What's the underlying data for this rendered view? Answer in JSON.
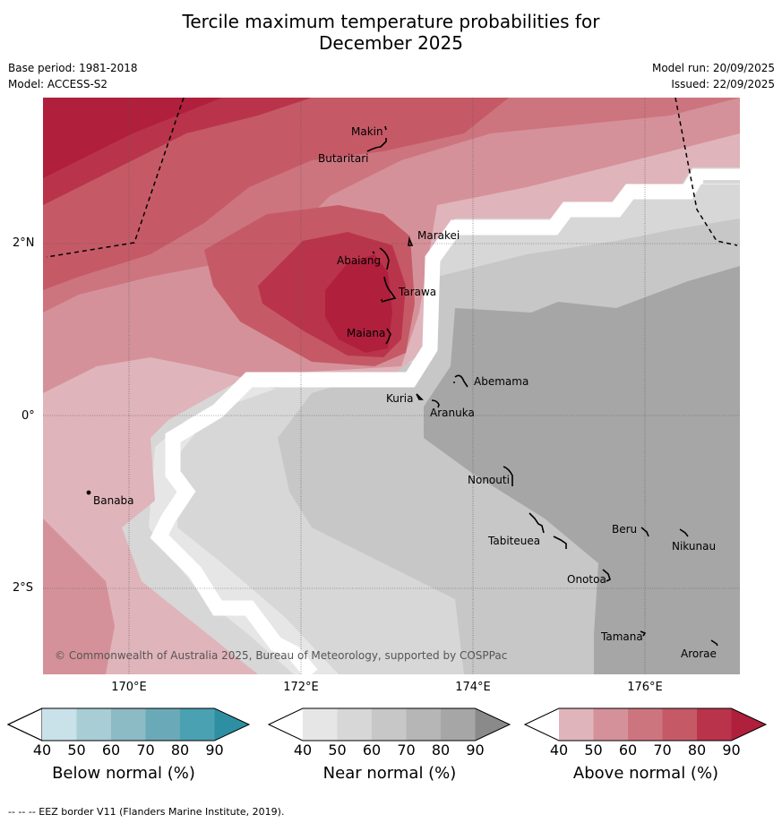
{
  "title": {
    "line1": "Tercile maximum temperature probabilities for",
    "line2": "December 2025"
  },
  "meta": {
    "base_period": "Base period: 1981-2018",
    "model": "Model: ACCESS-S2",
    "model_run": "Model run: 20/09/2025",
    "issued": "Issued: 22/09/2025"
  },
  "axes": {
    "lat_labels": [
      "2°N",
      "0°",
      "2°S"
    ],
    "lon_labels": [
      "170°E",
      "172°E",
      "174°E",
      "176°E"
    ]
  },
  "islands": [
    {
      "id": "makin",
      "name": "Makin"
    },
    {
      "id": "butaritari",
      "name": "Butaritari"
    },
    {
      "id": "marakei",
      "name": "Marakei"
    },
    {
      "id": "abaiang",
      "name": "Abaiang"
    },
    {
      "id": "tarawa",
      "name": "Tarawa"
    },
    {
      "id": "maiana",
      "name": "Maiana"
    },
    {
      "id": "abemama",
      "name": "Abemama"
    },
    {
      "id": "kuria",
      "name": "Kuria"
    },
    {
      "id": "aranuka",
      "name": "Aranuka"
    },
    {
      "id": "banaba",
      "name": "Banaba"
    },
    {
      "id": "nonouti",
      "name": "Nonouti"
    },
    {
      "id": "tabiteuea",
      "name": "Tabiteuea"
    },
    {
      "id": "beru",
      "name": "Beru"
    },
    {
      "id": "nikunau",
      "name": "Nikunau"
    },
    {
      "id": "onotoa",
      "name": "Onotoa"
    },
    {
      "id": "tamana",
      "name": "Tamana"
    },
    {
      "id": "arorae",
      "name": "Arorae"
    }
  ],
  "copyright": "© Commonwealth of Australia 2025, Bureau of Meteorology, supported by COSPPac",
  "legends": [
    {
      "id": "below",
      "title": "Below normal (%)",
      "ticks": [
        "40",
        "50",
        "60",
        "70",
        "80",
        "90"
      ],
      "colors": [
        "#ffffff",
        "#c9e1e8",
        "#a8cdd5",
        "#8cbac5",
        "#6aa9b8",
        "#4aa1b2",
        "#2e8fa2"
      ]
    },
    {
      "id": "near",
      "title": "Near normal (%)",
      "ticks": [
        "40",
        "50",
        "60",
        "70",
        "80",
        "90"
      ],
      "colors": [
        "#ffffff",
        "#e6e6e6",
        "#d7d7d7",
        "#c7c7c7",
        "#b6b6b6",
        "#a6a6a6",
        "#8a8a8a"
      ]
    },
    {
      "id": "above",
      "title": "Above normal (%)",
      "ticks": [
        "40",
        "50",
        "60",
        "70",
        "80",
        "90"
      ],
      "colors": [
        "#ffffff",
        "#e0b4bb",
        "#d59199",
        "#cd757f",
        "#c55a66",
        "#b9344a",
        "#b01f3c"
      ]
    }
  ],
  "footnote": "--  --  -- EEZ border V11 (Flanders Marine Institute, 2019)."
}
